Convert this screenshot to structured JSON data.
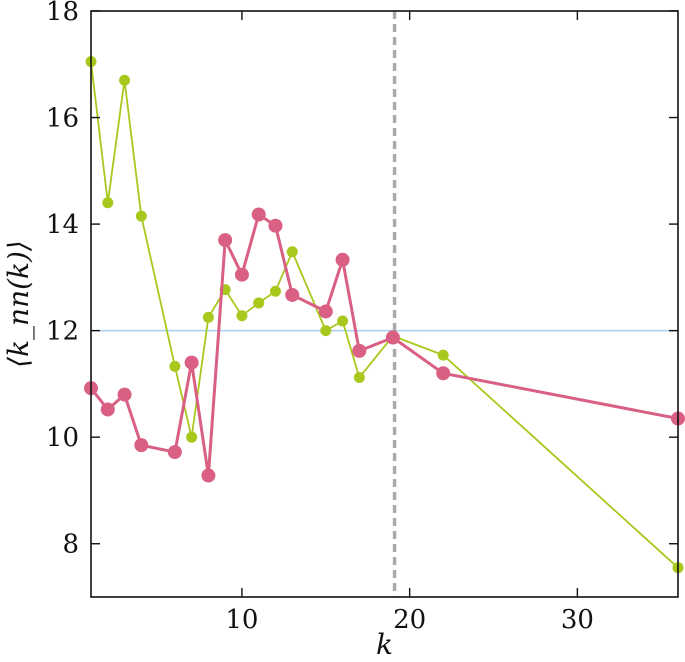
{
  "chart_data": {
    "type": "line",
    "title": "",
    "xlabel": "k",
    "ylabel": "⟨k_nn(k)⟩",
    "xlim": [
      1,
      36
    ],
    "ylim": [
      7,
      18
    ],
    "xticks": [
      10,
      20,
      30
    ],
    "yticks": [
      8,
      10,
      12,
      14,
      16,
      18
    ],
    "xtick_labels": [
      "10",
      "20",
      "30"
    ],
    "ytick_labels": [
      "8",
      "10",
      "12",
      "14",
      "16",
      "18"
    ],
    "grid": false,
    "legend": "none",
    "series": [
      {
        "color": "#a8c81e",
        "x": [
          1,
          2,
          3,
          4,
          6,
          7,
          8,
          9,
          10,
          11,
          12,
          13,
          15,
          16,
          17,
          19,
          22,
          36
        ],
        "y": [
          17.05,
          14.4,
          16.7,
          14.15,
          11.33,
          10.0,
          12.25,
          12.77,
          12.28,
          12.52,
          12.74,
          13.48,
          12.0,
          12.18,
          11.12,
          11.9,
          11.54,
          7.55
        ]
      },
      {
        "color": "#d95f83",
        "x": [
          1,
          2,
          3,
          4,
          6,
          7,
          8,
          9,
          10,
          11,
          12,
          13,
          15,
          16,
          17,
          19,
          22,
          36
        ],
        "y": [
          10.92,
          10.52,
          10.8,
          9.85,
          9.72,
          11.4,
          9.28,
          13.7,
          13.05,
          14.18,
          13.97,
          12.67,
          12.36,
          13.33,
          11.62,
          11.87,
          11.2,
          10.35
        ]
      }
    ],
    "reference_lines": [
      {
        "orientation": "horizontal",
        "value": 12,
        "color": "#a8cdf0",
        "style": "solid"
      },
      {
        "orientation": "vertical",
        "value": 19.1,
        "color": "#aaaaaa",
        "style": "dashed"
      }
    ]
  }
}
